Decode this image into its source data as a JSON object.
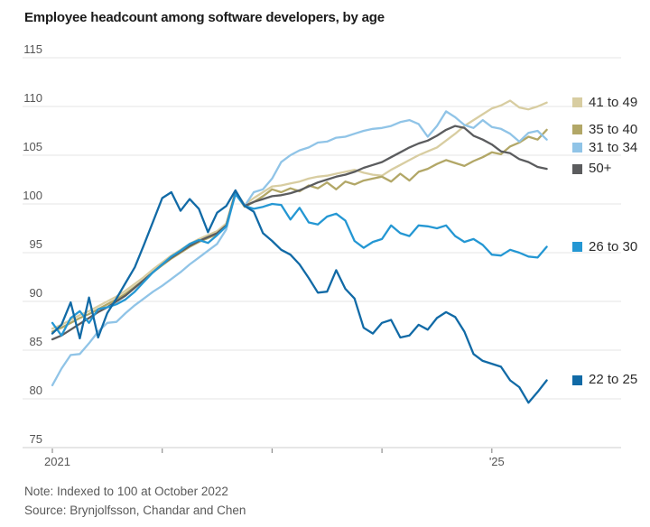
{
  "title": "Employee headcount among software developers, by age",
  "note": "Note: Indexed to 100 at October 2022",
  "source": "Source: Brynjolfsson, Chandar and Chen",
  "axes": {
    "y_ticks": [
      75,
      80,
      85,
      90,
      95,
      100,
      105,
      110,
      115
    ],
    "x_tick_labels": [
      "2021",
      "",
      "",
      "",
      "'25"
    ]
  },
  "colors": {
    "grid": "#e4e4e4",
    "axis": "#cdcdcd",
    "tick": "#8f8f8f",
    "axis_text": "#565656",
    "title_text": "#1a1a1a",
    "note_text": "#595959",
    "legend_text": "#2b2b2b"
  },
  "chart_data": {
    "type": "line",
    "title": "Employee headcount among software developers, by age",
    "x_start": "2021-01",
    "x_end": "2025-07",
    "x_step": "month",
    "ylim": [
      75,
      115
    ],
    "grid": "horizontal",
    "legend_position": "right",
    "index_note": "Indexed to 100 at October 2022",
    "series": [
      {
        "name": "41 to 49",
        "color": "#d8cda1",
        "values": [
          87.2,
          87.6,
          88.1,
          88.6,
          89.0,
          89.5,
          90.0,
          90.5,
          91.1,
          91.8,
          92.5,
          93.3,
          94.0,
          94.7,
          95.3,
          95.9,
          96.4,
          96.8,
          97.2,
          98.0,
          101.3,
          99.9,
          100.6,
          101.2,
          101.8,
          101.9,
          102.1,
          102.3,
          102.6,
          102.8,
          102.9,
          103.1,
          103.3,
          103.5,
          103.2,
          103.0,
          102.9,
          103.5,
          104.0,
          104.5,
          105.0,
          105.4,
          105.8,
          106.5,
          107.2,
          108.0,
          108.6,
          109.2,
          109.8,
          110.1,
          110.6,
          109.9,
          109.7,
          110.0,
          110.4
        ]
      },
      {
        "name": "35 to 40",
        "color": "#b2a767",
        "values": [
          86.9,
          87.3,
          87.8,
          88.3,
          88.7,
          89.2,
          89.7,
          90.2,
          90.8,
          91.5,
          92.2,
          93.0,
          93.7,
          94.4,
          95.0,
          95.6,
          96.1,
          96.5,
          96.9,
          97.8,
          101.1,
          99.7,
          100.2,
          100.8,
          101.5,
          101.2,
          101.6,
          101.3,
          101.9,
          101.6,
          102.2,
          101.5,
          102.3,
          102.0,
          102.4,
          102.6,
          102.8,
          102.3,
          103.1,
          102.4,
          103.3,
          103.6,
          104.1,
          104.5,
          104.2,
          103.9,
          104.4,
          104.8,
          105.3,
          105.1,
          105.9,
          106.3,
          106.9,
          106.6,
          107.6
        ]
      },
      {
        "name": "31 to 34",
        "color": "#90c4e7",
        "values": [
          81.4,
          83.1,
          84.5,
          84.6,
          85.7,
          86.9,
          87.8,
          87.9,
          88.8,
          89.6,
          90.3,
          91.0,
          91.6,
          92.3,
          93.0,
          93.8,
          94.5,
          95.2,
          95.9,
          97.4,
          101.2,
          99.8,
          101.2,
          101.5,
          102.6,
          104.3,
          105.0,
          105.5,
          105.8,
          106.3,
          106.4,
          106.8,
          106.9,
          107.2,
          107.5,
          107.7,
          107.8,
          108.0,
          108.4,
          108.6,
          108.2,
          106.9,
          108.0,
          109.5,
          108.9,
          108.1,
          107.8,
          108.6,
          107.9,
          107.7,
          107.2,
          106.4,
          107.3,
          107.5,
          106.6
        ]
      },
      {
        "name": "50+",
        "color": "#5b5c5e",
        "values": [
          86.1,
          86.5,
          87.1,
          87.7,
          88.3,
          88.9,
          89.4,
          90.0,
          90.6,
          91.4,
          92.2,
          93.0,
          93.8,
          94.5,
          95.1,
          95.7,
          96.2,
          96.6,
          97.0,
          97.8,
          101.1,
          99.8,
          100.2,
          100.5,
          100.8,
          100.9,
          101.1,
          101.4,
          101.8,
          102.2,
          102.5,
          102.8,
          103.0,
          103.3,
          103.7,
          104.0,
          104.3,
          104.8,
          105.3,
          105.8,
          106.2,
          106.5,
          107.0,
          107.6,
          108.0,
          107.8,
          107.0,
          106.6,
          106.1,
          105.4,
          105.2,
          104.6,
          104.3,
          103.8,
          103.6
        ]
      },
      {
        "name": "26 to 30",
        "color": "#2497d3",
        "values": [
          87.8,
          86.5,
          88.3,
          89.0,
          87.8,
          89.2,
          89.4,
          89.7,
          90.2,
          91.0,
          92.0,
          93.0,
          93.8,
          94.6,
          95.2,
          95.9,
          96.3,
          96.0,
          96.8,
          97.7,
          101.0,
          99.8,
          99.5,
          99.7,
          100.0,
          99.9,
          98.4,
          99.6,
          98.1,
          97.9,
          98.7,
          99.0,
          98.3,
          96.2,
          95.5,
          96.1,
          96.4,
          97.8,
          97.0,
          96.7,
          97.8,
          97.7,
          97.5,
          97.8,
          96.7,
          96.1,
          96.4,
          95.8,
          94.8,
          94.7,
          95.3,
          95.0,
          94.6,
          94.5,
          95.6
        ]
      },
      {
        "name": "22 to 25",
        "color": "#116aa6",
        "values": [
          86.7,
          87.6,
          89.9,
          86.2,
          90.4,
          86.3,
          88.8,
          90.3,
          91.9,
          93.5,
          95.8,
          98.2,
          100.6,
          101.2,
          99.3,
          100.5,
          99.5,
          97.1,
          99.1,
          99.8,
          101.4,
          99.8,
          99.2,
          97.0,
          96.2,
          95.3,
          94.8,
          93.8,
          92.4,
          90.9,
          91.0,
          93.2,
          91.3,
          90.3,
          87.3,
          86.7,
          87.8,
          88.1,
          86.3,
          86.5,
          87.6,
          87.1,
          88.3,
          88.9,
          88.4,
          86.9,
          84.6,
          83.9,
          83.6,
          83.3,
          81.9,
          81.2,
          79.6,
          80.7,
          81.9
        ]
      }
    ]
  }
}
